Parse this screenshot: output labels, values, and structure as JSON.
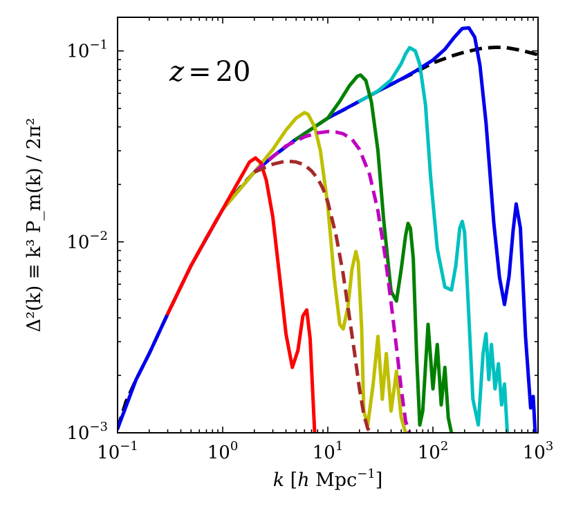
{
  "chart_data": {
    "type": "line",
    "annotation": {
      "text": "z = 20",
      "symbol": "z",
      "eq": "=",
      "value": "20"
    },
    "xlabel": {
      "sym": "k",
      "bracket_open": "[",
      "h": "h",
      "unit": "Mpc",
      "exp": "−1",
      "bracket_close": "]"
    },
    "ylabel": "Δ²(k) ≡ k³ P_m(k) / 2π²",
    "xscale": "log",
    "yscale": "log",
    "xlim": [
      0.1,
      1000
    ],
    "ylim": [
      0.001,
      0.15
    ],
    "x_ticks": [
      {
        "value": 0.1,
        "base": "10",
        "exp": "−1"
      },
      {
        "value": 1,
        "base": "10",
        "exp": "0"
      },
      {
        "value": 10,
        "base": "10",
        "exp": "1"
      },
      {
        "value": 100,
        "base": "10",
        "exp": "2"
      },
      {
        "value": 1000,
        "base": "10",
        "exp": "3"
      }
    ],
    "y_ticks": [
      {
        "value": 0.001,
        "base": "10",
        "exp": "−3"
      },
      {
        "value": 0.01,
        "base": "10",
        "exp": "−2"
      },
      {
        "value": 0.1,
        "base": "10",
        "exp": "−1"
      }
    ],
    "grid": false,
    "series": [
      {
        "color": "#000000",
        "style": "dashed",
        "x": [
          0.1,
          0.12,
          0.15,
          0.2,
          0.3,
          0.5,
          0.7,
          1,
          1.5,
          2,
          3,
          5,
          7,
          10,
          15,
          20,
          30,
          50,
          70,
          100,
          150,
          200,
          300,
          400,
          500,
          700,
          1000
        ],
        "y": [
          0.00105,
          0.00145,
          0.0019,
          0.0026,
          0.0042,
          0.0075,
          0.0105,
          0.0148,
          0.0195,
          0.0232,
          0.028,
          0.0345,
          0.039,
          0.0445,
          0.05,
          0.0545,
          0.0615,
          0.071,
          0.078,
          0.0865,
          0.094,
          0.0985,
          0.1035,
          0.1045,
          0.104,
          0.1005,
          0.0955
        ]
      },
      {
        "color": "#0000ee",
        "style": "solid",
        "x": [
          0.1,
          0.15,
          0.2,
          0.3,
          0.5,
          1,
          2,
          3,
          5,
          10,
          20,
          30,
          50,
          70,
          100,
          130,
          160,
          190,
          220,
          250,
          280,
          320,
          380,
          430,
          480,
          530,
          580,
          620,
          680,
          760,
          850,
          900,
          940
        ],
        "y": [
          0.00105,
          0.0019,
          0.0026,
          0.0042,
          0.0075,
          0.0148,
          0.0232,
          0.028,
          0.0345,
          0.0445,
          0.0545,
          0.0615,
          0.0712,
          0.079,
          0.0895,
          0.102,
          0.118,
          0.131,
          0.132,
          0.118,
          0.084,
          0.042,
          0.0125,
          0.0065,
          0.0047,
          0.0066,
          0.0115,
          0.0158,
          0.0118,
          0.0032,
          0.00135,
          0.00155,
          0.001
        ]
      },
      {
        "color": "#00c0c0",
        "style": "solid",
        "x": [
          20,
          30,
          40,
          50,
          55,
          60,
          68,
          75,
          85,
          95,
          110,
          130,
          150,
          165,
          180,
          190,
          200,
          215,
          240,
          270,
          300,
          320,
          340,
          360,
          390,
          420,
          450,
          480,
          510
        ],
        "y": [
          0.0545,
          0.0617,
          0.0705,
          0.0858,
          0.0965,
          0.104,
          0.1,
          0.085,
          0.052,
          0.022,
          0.0092,
          0.0058,
          0.0056,
          0.0075,
          0.0118,
          0.0128,
          0.0112,
          0.0052,
          0.0015,
          0.0011,
          0.0026,
          0.0033,
          0.0019,
          0.0029,
          0.0017,
          0.0023,
          0.0014,
          0.0018,
          0.001
        ]
      },
      {
        "color": "#008000",
        "style": "solid",
        "x": [
          5,
          7,
          10,
          13,
          16,
          19,
          20.5,
          23,
          26,
          30,
          34,
          40,
          45,
          50,
          55,
          58,
          61,
          65,
          70,
          75,
          80,
          90,
          100,
          110,
          120,
          130,
          140,
          150
        ],
        "y": [
          0.0345,
          0.039,
          0.0445,
          0.0545,
          0.0655,
          0.0735,
          0.0748,
          0.07,
          0.054,
          0.03,
          0.013,
          0.0055,
          0.0049,
          0.0072,
          0.0108,
          0.0125,
          0.0118,
          0.0082,
          0.0025,
          0.0011,
          0.0013,
          0.0037,
          0.0017,
          0.0029,
          0.0014,
          0.0022,
          0.0012,
          0.001
        ]
      },
      {
        "color": "#bfbf00",
        "style": "solid",
        "x": [
          1,
          2,
          3,
          4,
          5,
          6,
          6.5,
          7.5,
          8.5,
          10,
          11.5,
          13,
          14,
          15.5,
          17,
          18.5,
          19.5,
          21,
          22,
          24,
          27,
          30,
          33,
          36,
          40,
          45,
          50,
          55
        ],
        "y": [
          0.0148,
          0.0232,
          0.0305,
          0.0385,
          0.0445,
          0.0475,
          0.0465,
          0.04,
          0.03,
          0.0155,
          0.0065,
          0.0037,
          0.0035,
          0.0045,
          0.0072,
          0.0089,
          0.0078,
          0.0035,
          0.0013,
          0.0011,
          0.0018,
          0.0032,
          0.0015,
          0.0026,
          0.0013,
          0.0021,
          0.0012,
          0.001
        ]
      },
      {
        "color": "#ff0000",
        "style": "solid",
        "x": [
          0.3,
          0.5,
          0.7,
          1,
          1.4,
          1.8,
          2.05,
          2.3,
          2.6,
          3,
          3.5,
          4,
          4.6,
          5.2,
          5.8,
          6.3,
          6.8,
          7.5
        ],
        "y": [
          0.0042,
          0.0075,
          0.0105,
          0.0148,
          0.0205,
          0.0262,
          0.0275,
          0.026,
          0.021,
          0.0135,
          0.0064,
          0.0033,
          0.0022,
          0.0027,
          0.0041,
          0.0044,
          0.0031,
          0.001
        ]
      },
      {
        "color": "#c000c0",
        "style": "dashed",
        "x": [
          2,
          4,
          6,
          8,
          10,
          12,
          14,
          17,
          20,
          25,
          30,
          35,
          40,
          45,
          50,
          55,
          60
        ],
        "y": [
          0.0232,
          0.0318,
          0.0355,
          0.0372,
          0.0378,
          0.0376,
          0.0368,
          0.0345,
          0.0305,
          0.0225,
          0.0145,
          0.0085,
          0.0048,
          0.0028,
          0.0017,
          0.00115,
          0.001
        ]
      },
      {
        "color": "#a52a2a",
        "style": "dashed",
        "x": [
          2,
          3,
          4,
          5,
          6,
          7,
          8,
          9,
          10,
          12,
          14,
          16,
          18,
          20,
          22,
          24,
          26
        ],
        "y": [
          0.0232,
          0.0255,
          0.0265,
          0.0262,
          0.0253,
          0.0235,
          0.0215,
          0.019,
          0.0162,
          0.0108,
          0.0068,
          0.0041,
          0.0026,
          0.0017,
          0.00125,
          0.00105,
          0.001
        ]
      }
    ]
  }
}
